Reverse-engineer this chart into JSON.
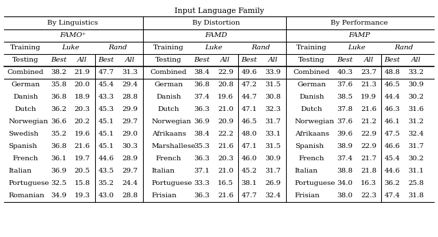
{
  "title": "Input Language Family",
  "sections": [
    "By Linguistics",
    "By Distortion",
    "By Performance"
  ],
  "models": [
    "FAMO⁺",
    "FAMD",
    "FAMP"
  ],
  "combined_row": [
    "Combined",
    "38.2",
    "21.9",
    "47.7",
    "31.3",
    "Combined",
    "38.4",
    "22.9",
    "49.6",
    "33.9",
    "Combined",
    "40.3",
    "23.7",
    "48.8",
    "33.2"
  ],
  "data_rows": [
    [
      "German",
      "35.8",
      "20.0",
      "45.4",
      "29.4",
      "German",
      "36.8",
      "20.8",
      "47.2",
      "31.5",
      "German",
      "37.6",
      "21.3",
      "46.5",
      "30.9"
    ],
    [
      "Danish",
      "36.8",
      "18.9",
      "43.3",
      "28.8",
      "Danish",
      "37.4",
      "19.6",
      "44.7",
      "30.8",
      "Danish",
      "38.5",
      "19.9",
      "44.4",
      "30.2"
    ],
    [
      "Dutch",
      "36.2",
      "20.3",
      "45.3",
      "29.9",
      "Dutch",
      "36.3",
      "21.0",
      "47.1",
      "32.3",
      "Dutch",
      "37.8",
      "21.6",
      "46.3",
      "31.6"
    ],
    [
      "Norwegian",
      "36.6",
      "20.2",
      "45.1",
      "29.7",
      "Norwegian",
      "36.9",
      "20.9",
      "46.5",
      "31.7",
      "Norwegian",
      "37.6",
      "21.2",
      "46.1",
      "31.2"
    ],
    [
      "Swedish",
      "35.2",
      "19.6",
      "45.1",
      "29.0",
      "Afrikaans",
      "38.4",
      "22.2",
      "48.0",
      "33.1",
      "Afrikaans",
      "39.6",
      "22.9",
      "47.5",
      "32.4"
    ],
    [
      "Spanish",
      "36.8",
      "21.6",
      "45.1",
      "30.3",
      "Marshallese",
      "35.3",
      "21.6",
      "47.1",
      "31.5",
      "Spanish",
      "38.9",
      "22.9",
      "46.6",
      "31.7"
    ],
    [
      "French",
      "36.1",
      "19.7",
      "44.6",
      "28.9",
      "French",
      "36.3",
      "20.3",
      "46.0",
      "30.9",
      "French",
      "37.4",
      "21.7",
      "45.4",
      "30.2"
    ],
    [
      "Italian",
      "36.9",
      "20.5",
      "43.5",
      "29.7",
      "Italian",
      "37.1",
      "21.0",
      "45.2",
      "31.7",
      "Italian",
      "38.8",
      "21.8",
      "44.6",
      "31.1"
    ],
    [
      "Portuguese",
      "32.5",
      "15.8",
      "35.2",
      "24.4",
      "Portuguese",
      "33.3",
      "16.5",
      "38.1",
      "26.9",
      "Portuguese",
      "34.0",
      "16.3",
      "36.2",
      "25.8"
    ],
    [
      "Romanian",
      "34.9",
      "19.3",
      "43.0",
      "28.8",
      "Frisian",
      "36.3",
      "21.6",
      "47.7",
      "32.4",
      "Frisian",
      "38.0",
      "22.3",
      "47.4",
      "31.8"
    ]
  ],
  "bg_color": "white",
  "text_color": "black",
  "fontsize": 7.5
}
